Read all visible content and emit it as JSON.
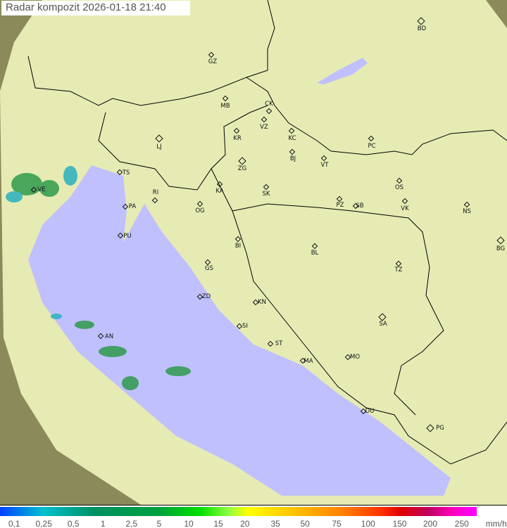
{
  "title": "Radar kompozit  2026-01-18   21:40",
  "colors": {
    "sea": "#c0c0ff",
    "land": "#e6ebb4",
    "outside": "#8a8a5a",
    "rain": "#2e9a4c",
    "border": "#000000"
  },
  "cities": [
    {
      "code": "GZ",
      "big": false
    },
    {
      "code": "BD",
      "big": true
    },
    {
      "code": "MB",
      "big": false
    },
    {
      "code": "CK",
      "big": false
    },
    {
      "code": "VZ",
      "big": false
    },
    {
      "code": "KR",
      "big": false
    },
    {
      "code": "KC",
      "big": false
    },
    {
      "code": "PC",
      "big": false
    },
    {
      "code": "LJ",
      "big": true
    },
    {
      "code": "ZG",
      "big": true
    },
    {
      "code": "BJ",
      "big": false
    },
    {
      "code": "VT",
      "big": false
    },
    {
      "code": "TS",
      "big": false
    },
    {
      "code": "VE",
      "big": false
    },
    {
      "code": "KA",
      "big": false
    },
    {
      "code": "SK",
      "big": false
    },
    {
      "code": "OS",
      "big": false
    },
    {
      "code": "RI",
      "big": false
    },
    {
      "code": "PA",
      "big": false
    },
    {
      "code": "OG",
      "big": false
    },
    {
      "code": "PZ",
      "big": false
    },
    {
      "code": "SB",
      "big": false
    },
    {
      "code": "VK",
      "big": false
    },
    {
      "code": "NS",
      "big": false
    },
    {
      "code": "PU",
      "big": false
    },
    {
      "code": "BI",
      "big": false
    },
    {
      "code": "BL",
      "big": false
    },
    {
      "code": "BG",
      "big": true
    },
    {
      "code": "GS",
      "big": false
    },
    {
      "code": "TZ",
      "big": false
    },
    {
      "code": "ZD",
      "big": false
    },
    {
      "code": "KN",
      "big": false
    },
    {
      "code": "SA",
      "big": true
    },
    {
      "code": "AN",
      "big": false
    },
    {
      "code": "SI",
      "big": false
    },
    {
      "code": "ST",
      "big": false
    },
    {
      "code": "MA",
      "big": false
    },
    {
      "code": "MO",
      "big": false
    },
    {
      "code": "DU",
      "big": false
    },
    {
      "code": "PG",
      "big": true
    }
  ],
  "legend": {
    "ticks": [
      "0,1",
      "0,25",
      "0,5",
      "1",
      "2,5",
      "5",
      "10",
      "15",
      "20",
      "35",
      "50",
      "75",
      "100",
      "150",
      "200",
      "250"
    ],
    "unit": "mm/h"
  }
}
